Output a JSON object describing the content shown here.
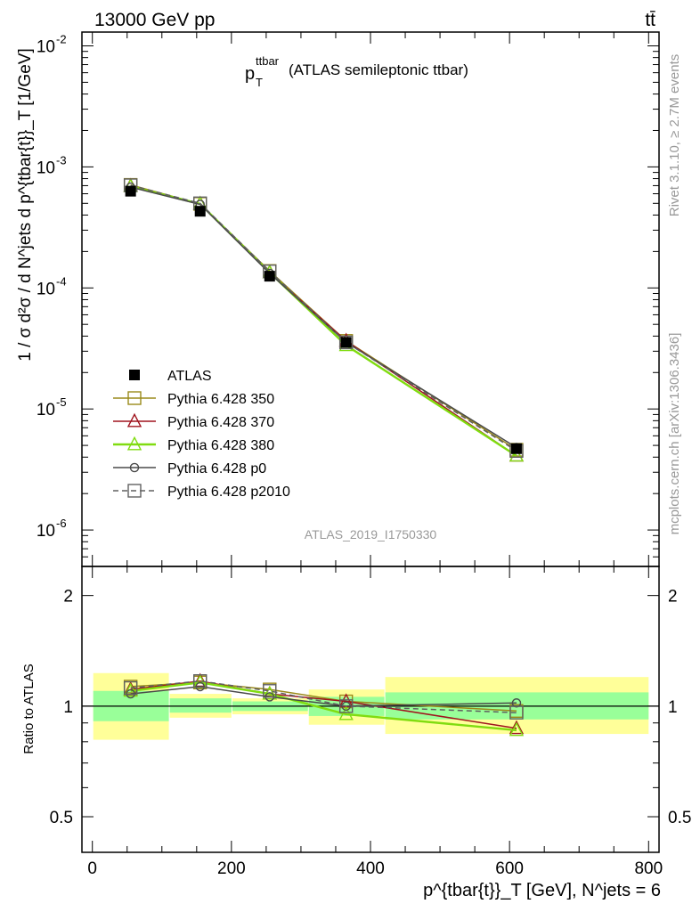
{
  "header": {
    "energy_label": "13000 GeV pp",
    "process_label": "tt̄",
    "side_rivet": "Rivet 3.1.10, ≥ 2.7M events",
    "side_mcplots": "mcplots.cern.ch [arXiv:1306.3436]"
  },
  "chart_data": [
    {
      "panel": "main",
      "type": "line",
      "title": "p_T^{ttbar} (ATLAS semileptonic ttbar)",
      "title_main": "p",
      "title_sub": "T",
      "title_sup": "ttbar",
      "title_rest": "(ATLAS semileptonic ttbar)",
      "analysis_label": "ATLAS_2019_I1750330",
      "ylabel": "1 / σ d²σ / d N^jets d p^{tbar{t}}_T [1/GeV]",
      "yscale": "log",
      "ylim": [
        5e-07,
        0.013
      ],
      "xlim": [
        -15,
        815
      ],
      "legend_position": "lower-left",
      "x": [
        55,
        155,
        255,
        365,
        610
      ],
      "xerr_bins": [
        [
          0,
          110
        ],
        [
          110,
          200
        ],
        [
          200,
          310
        ],
        [
          310,
          420
        ],
        [
          420,
          800
        ]
      ],
      "series": [
        {
          "name": "ATLAS",
          "color": "#000000",
          "marker": "filled-square",
          "line": "none",
          "values": [
            0.00063,
            0.00043,
            0.000125,
            3.55e-05,
            4.7e-06
          ]
        },
        {
          "name": "Pythia 6.428 350",
          "color": "#9a8a1a",
          "marker": "open-square",
          "line": "solid",
          "values": [
            0.00071,
            0.000495,
            0.000138,
            3.65e-05,
            4.6e-06
          ]
        },
        {
          "name": "Pythia 6.428 370",
          "color": "#a0141e",
          "marker": "open-triangle",
          "line": "solid",
          "values": [
            0.000695,
            0.000495,
            0.000134,
            3.65e-05,
            4.1e-06
          ]
        },
        {
          "name": "Pythia 6.428 380",
          "color": "#80dc10",
          "marker": "open-triangle",
          "line": "solid",
          "values": [
            0.00069,
            0.000495,
            0.000134,
            3.35e-05,
            4.1e-06
          ]
        },
        {
          "name": "Pythia 6.428 p0",
          "color": "#4a4a4a",
          "marker": "open-circle",
          "line": "solid",
          "values": [
            0.00068,
            0.00049,
            0.000132,
            3.55e-05,
            4.8e-06
          ]
        },
        {
          "name": "Pythia 6.428 p2010",
          "color": "#606060",
          "marker": "open-square",
          "line": "dashed",
          "values": [
            0.000705,
            0.0005,
            0.000137,
            3.55e-05,
            4.5e-06
          ]
        }
      ]
    },
    {
      "panel": "ratio",
      "type": "line",
      "ylabel": "Ratio to ATLAS",
      "xlabel": "p^{tbar{t}}_T [GeV], N^jets = 6",
      "yscale": "log",
      "ylim": [
        0.4,
        2.4
      ],
      "xlim": [
        -15,
        815
      ],
      "x_ticks": [
        0,
        200,
        400,
        600,
        800
      ],
      "y_ticks": [
        0.5,
        1,
        2
      ],
      "reference_line": 1,
      "bands": {
        "inner_color": "#99ff99",
        "outer_color": "#ffff99",
        "bins": [
          {
            "xlow": 0,
            "xhigh": 110,
            "inner": [
              0.91,
              1.1
            ],
            "outer": [
              0.81,
              1.23
            ]
          },
          {
            "xlow": 110,
            "xhigh": 200,
            "inner": [
              0.96,
              1.05
            ],
            "outer": [
              0.93,
              1.08
            ]
          },
          {
            "xlow": 200,
            "xhigh": 310,
            "inner": [
              0.97,
              1.03
            ],
            "outer": [
              0.95,
              1.05
            ]
          },
          {
            "xlow": 310,
            "xhigh": 420,
            "inner": [
              0.94,
              1.06
            ],
            "outer": [
              0.89,
              1.11
            ]
          },
          {
            "xlow": 420,
            "xhigh": 800,
            "inner": [
              0.92,
              1.09
            ],
            "outer": [
              0.84,
              1.2
            ]
          }
        ]
      },
      "series": [
        {
          "name": "Pythia 6.428 350",
          "color": "#9a8a1a",
          "marker": "open-square",
          "line": "solid",
          "values": [
            1.13,
            1.16,
            1.11,
            1.03,
            0.97
          ]
        },
        {
          "name": "Pythia 6.428 370",
          "color": "#a0141e",
          "marker": "open-triangle",
          "line": "solid",
          "values": [
            1.11,
            1.17,
            1.08,
            1.03,
            0.87
          ]
        },
        {
          "name": "Pythia 6.428 380",
          "color": "#80dc10",
          "marker": "open-triangle",
          "line": "solid",
          "values": [
            1.1,
            1.16,
            1.08,
            0.95,
            0.86
          ]
        },
        {
          "name": "Pythia 6.428 p0",
          "color": "#4a4a4a",
          "marker": "open-circle",
          "line": "solid",
          "values": [
            1.08,
            1.13,
            1.06,
            1.0,
            1.02
          ]
        },
        {
          "name": "Pythia 6.428 p2010",
          "color": "#606060",
          "marker": "open-square",
          "line": "dashed",
          "values": [
            1.12,
            1.17,
            1.1,
            1.0,
            0.96
          ]
        }
      ]
    }
  ]
}
